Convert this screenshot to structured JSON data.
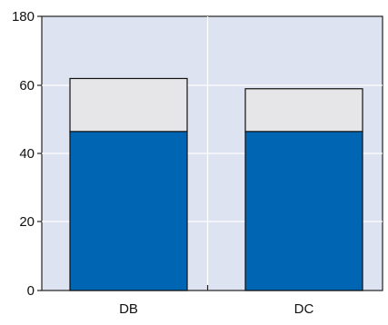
{
  "chart_data": {
    "type": "bar",
    "stacked": true,
    "categories": [
      "DB",
      "DC"
    ],
    "series": [
      {
        "values": [
          46.5,
          46.5
        ],
        "color": "#0066b3"
      },
      {
        "values": [
          15.5,
          12.5
        ],
        "color": "#e6e6e8"
      }
    ],
    "y_axis": {
      "ticks": [
        0,
        20,
        40,
        60,
        180
      ],
      "tick_labels": [
        "0",
        "20",
        "40",
        "60",
        "180"
      ],
      "note": "axis is broken: the 180 label sits at the top of the plot area"
    },
    "plot_background": "#dde3f0",
    "grid": {
      "horizontal": true,
      "vertical_center_divider": true
    },
    "title": "",
    "xlabel": "",
    "ylabel": ""
  }
}
